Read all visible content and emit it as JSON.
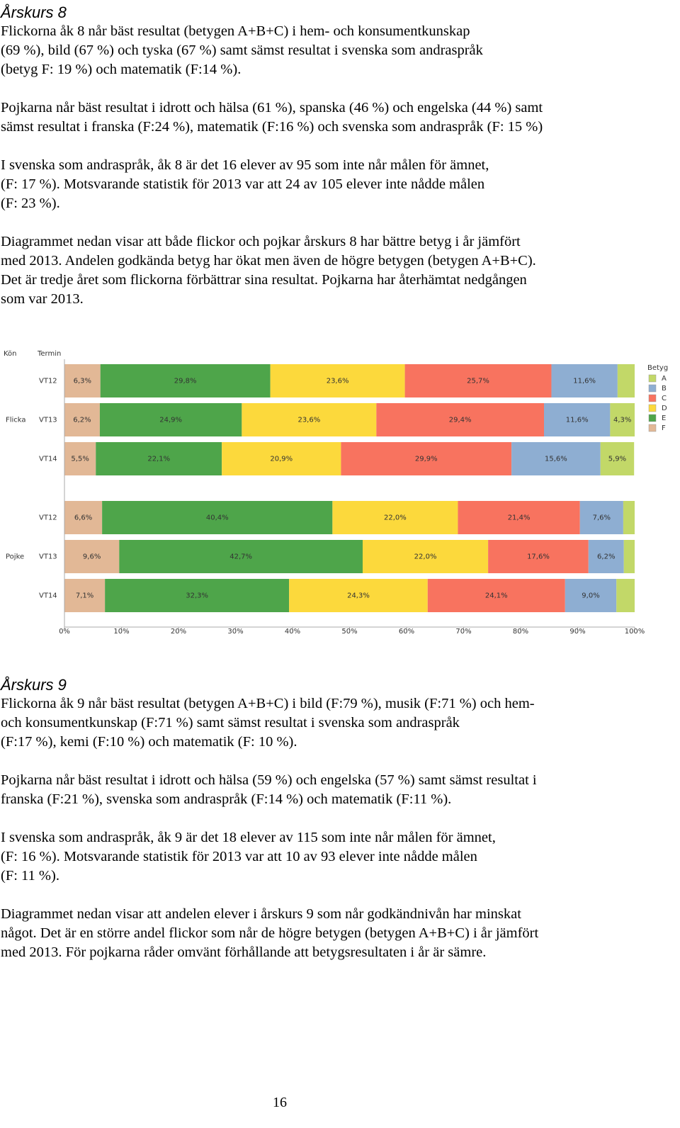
{
  "section_1": {
    "heading": "Årskurs 8",
    "paragraphs": [
      [
        "Flickorna åk 8 når bäst resultat (betygen A+B+C) i hem- och konsumentkunskap",
        "(69 %), bild (67 %) och tyska (67 %) samt sämst resultat i svenska som andraspråk",
        "(betyg F: 19 %) och matematik (F:14 %)."
      ],
      [
        "Pojkarna når bäst resultat i idrott och hälsa (61 %), spanska (46 %) och engelska (44 %) samt",
        "sämst resultat i franska (F:24 %), matematik (F:16 %) och svenska som andraspråk (F: 15 %)"
      ],
      [
        "I svenska som andraspråk, åk 8 är det 16 elever av 95 som inte når målen för ämnet,",
        "(F: 17 %). Motsvarande statistik för 2013 var att 24 av 105 elever inte nådde målen",
        "(F: 23 %)."
      ],
      [
        "Diagrammet nedan visar att både flickor och pojkar årskurs 8 har bättre betyg i år jämfört",
        "med 2013. Andelen godkända betyg har ökat men även de högre betygen (betygen A+B+C).",
        "Det är tredje året som flickorna förbättrar sina resultat. Pojkarna har återhämtat nedgången",
        "som var 2013."
      ]
    ]
  },
  "chart_data": {
    "type": "bar",
    "orientation": "horizontal",
    "stacked": true,
    "row_headers": [
      "Kön",
      "Termin"
    ],
    "groups": [
      "Flicka",
      "Pojke"
    ],
    "categories": [
      "VT12",
      "VT13",
      "VT14",
      "VT12",
      "VT13",
      "VT14"
    ],
    "series": [
      {
        "name": "F",
        "color": "#e2b896",
        "values": [
          6.3,
          6.2,
          5.5,
          6.6,
          9.6,
          7.1
        ],
        "value_labels": [
          "6,3%",
          "6,2%",
          "5,5%",
          "6,6%",
          "9,6%",
          "7,1%"
        ]
      },
      {
        "name": "E",
        "color": "#4ea54a",
        "values": [
          29.8,
          24.9,
          22.1,
          40.4,
          42.7,
          32.3
        ],
        "value_labels": [
          "29,8%",
          "24,9%",
          "22,1%",
          "40,4%",
          "42,7%",
          "32,3%"
        ]
      },
      {
        "name": "D",
        "color": "#fcd93c",
        "values": [
          23.6,
          23.6,
          20.9,
          22.0,
          22.0,
          24.3
        ],
        "value_labels": [
          "23,6%",
          "23,6%",
          "20,9%",
          "22,0%",
          "22,0%",
          "24,3%"
        ]
      },
      {
        "name": "C",
        "color": "#f8735f",
        "values": [
          25.7,
          29.4,
          29.9,
          21.4,
          17.6,
          24.1
        ],
        "value_labels": [
          "25,7%",
          "29,4%",
          "29,9%",
          "21,4%",
          "17,6%",
          "24,1%"
        ]
      },
      {
        "name": "B",
        "color": "#8eaed2",
        "values": [
          11.6,
          11.6,
          15.6,
          7.6,
          6.2,
          9.0
        ],
        "value_labels": [
          "11,6%",
          "11,6%",
          "15,6%",
          "7,6%",
          "6,2%",
          "9,0%"
        ]
      },
      {
        "name": "A",
        "color": "#c2d868",
        "values": [
          3.0,
          4.3,
          5.9,
          2.0,
          1.9,
          3.2
        ],
        "value_labels": [
          null,
          "4,3%",
          "5,9%",
          null,
          null,
          null
        ]
      }
    ],
    "xlim": [
      0,
      100
    ],
    "xticks": [
      {
        "value": 0,
        "label": "0%"
      },
      {
        "value": 10,
        "label": "10%"
      },
      {
        "value": 20,
        "label": "20%"
      },
      {
        "value": 30,
        "label": "30%"
      },
      {
        "value": 40,
        "label": "40%"
      },
      {
        "value": 50,
        "label": "50%"
      },
      {
        "value": 60,
        "label": "60%"
      },
      {
        "value": 70,
        "label": "70%"
      },
      {
        "value": 80,
        "label": "80%"
      },
      {
        "value": 90,
        "label": "90%"
      },
      {
        "value": 100,
        "label": "100%"
      }
    ],
    "legend_title": "Betyg",
    "legend": "right"
  },
  "section_2": {
    "heading": "Årskurs 9",
    "paragraphs": [
      [
        "Flickorna åk 9 når bäst resultat (betygen A+B+C) i bild (F:79 %), musik (F:71 %) och hem-",
        "och konsumentkunskap (F:71 %) samt sämst resultat i svenska som andraspråk",
        "(F:17 %), kemi (F:10 %) och matematik (F: 10 %)."
      ],
      [
        "Pojkarna når bäst resultat i idrott och hälsa (59 %) och engelska (57 %) samt sämst resultat i",
        "franska (F:21 %), svenska som andraspråk (F:14 %) och matematik (F:11 %)."
      ],
      [
        "I svenska som andraspråk, åk 9 är det 18 elever av 115 som inte når målen för ämnet,",
        "(F: 16 %). Motsvarande statistik för 2013 var att 10 av 93 elever inte nådde målen",
        "(F: 11 %)."
      ],
      [
        "Diagrammet nedan visar att andelen elever i årskurs 9 som når godkändnivån har minskat",
        "något. Det är en större andel flickor som når de högre betygen (betygen A+B+C) i år jämfört",
        "med 2013. För pojkarna råder omvänt förhållande att betygsresultaten i år är sämre."
      ]
    ]
  },
  "page_number": "16"
}
